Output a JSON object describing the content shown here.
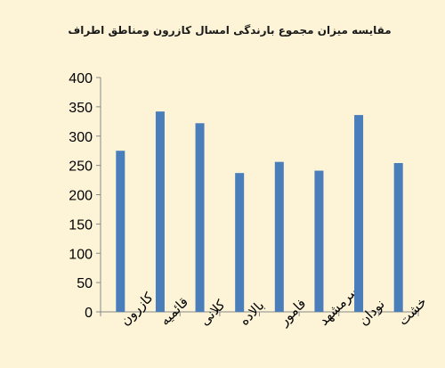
{
  "chart_data": {
    "type": "bar",
    "title": "مقایسه میزان مجموع بارندگی امسال کازرون ومناطق اطراف",
    "xlabel": "",
    "ylabel": "",
    "categories": [
      "کازرون",
      "قائمیه",
      "کلانی",
      "بالاده",
      "فامور",
      "سرمشهد",
      "نودان",
      "خشت"
    ],
    "values": [
      275,
      342,
      322,
      237,
      256,
      241,
      336,
      254
    ],
    "ylim": [
      0,
      400
    ],
    "yticks": [
      0,
      50,
      100,
      150,
      200,
      250,
      300,
      350,
      400
    ],
    "grid": false,
    "legend": "none",
    "colors": {
      "bar": "#4a7ebb",
      "background": "#fdf4d8",
      "axis": "#888888"
    }
  }
}
